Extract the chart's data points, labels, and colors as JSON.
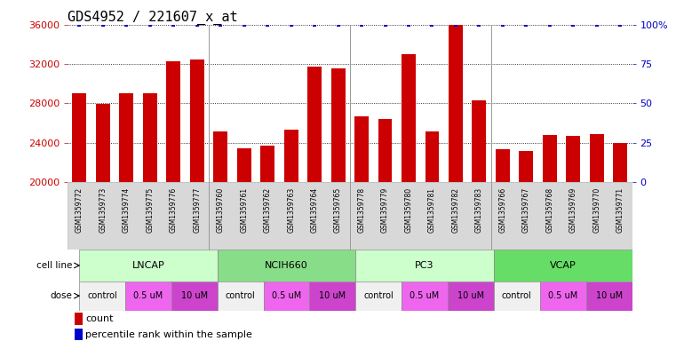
{
  "title": "GDS4952 / 221607_x_at",
  "samples": [
    "GSM1359772",
    "GSM1359773",
    "GSM1359774",
    "GSM1359775",
    "GSM1359776",
    "GSM1359777",
    "GSM1359760",
    "GSM1359761",
    "GSM1359762",
    "GSM1359763",
    "GSM1359764",
    "GSM1359765",
    "GSM1359778",
    "GSM1359779",
    "GSM1359780",
    "GSM1359781",
    "GSM1359782",
    "GSM1359783",
    "GSM1359766",
    "GSM1359767",
    "GSM1359768",
    "GSM1359769",
    "GSM1359770",
    "GSM1359771"
  ],
  "values": [
    29000,
    27900,
    29000,
    29000,
    32300,
    32400,
    25100,
    23400,
    23700,
    25300,
    31700,
    31500,
    26700,
    26400,
    33000,
    25100,
    36000,
    28300,
    23300,
    23200,
    24800,
    24700,
    24900,
    24000
  ],
  "bar_color": "#cc0000",
  "percentile_color": "#0000cc",
  "percentile_value": 36000,
  "ylim": [
    20000,
    36000
  ],
  "yticks": [
    20000,
    24000,
    28000,
    32000,
    36000
  ],
  "right_yticks": [
    0,
    25,
    50,
    75,
    100
  ],
  "right_ylim": [
    0,
    100
  ],
  "cell_lines": [
    {
      "label": "LNCAP",
      "start": 0,
      "end": 6,
      "color": "#ccffcc"
    },
    {
      "label": "NCIH660",
      "start": 6,
      "end": 12,
      "color": "#88dd88"
    },
    {
      "label": "PC3",
      "start": 12,
      "end": 18,
      "color": "#ccffcc"
    },
    {
      "label": "VCAP",
      "start": 18,
      "end": 24,
      "color": "#66dd66"
    }
  ],
  "dose_groups": [
    {
      "label": "control",
      "start": 0,
      "end": 2,
      "color": "#f0f0f0"
    },
    {
      "label": "0.5 uM",
      "start": 2,
      "end": 4,
      "color": "#ee66ee"
    },
    {
      "label": "10 uM",
      "start": 4,
      "end": 6,
      "color": "#cc44cc"
    },
    {
      "label": "control",
      "start": 6,
      "end": 8,
      "color": "#f0f0f0"
    },
    {
      "label": "0.5 uM",
      "start": 8,
      "end": 10,
      "color": "#ee66ee"
    },
    {
      "label": "10 uM",
      "start": 10,
      "end": 12,
      "color": "#cc44cc"
    },
    {
      "label": "control",
      "start": 12,
      "end": 14,
      "color": "#f0f0f0"
    },
    {
      "label": "0.5 uM",
      "start": 14,
      "end": 16,
      "color": "#ee66ee"
    },
    {
      "label": "10 uM",
      "start": 16,
      "end": 18,
      "color": "#cc44cc"
    },
    {
      "label": "control",
      "start": 18,
      "end": 20,
      "color": "#f0f0f0"
    },
    {
      "label": "0.5 uM",
      "start": 20,
      "end": 22,
      "color": "#ee66ee"
    },
    {
      "label": "10 uM",
      "start": 22,
      "end": 24,
      "color": "#cc44cc"
    }
  ],
  "group_separators": [
    6,
    12,
    18
  ],
  "grid_color": "#000000",
  "bg_color": "#ffffff",
  "ytick_color": "#cc0000",
  "right_tick_color": "#0000cc",
  "title_fontsize": 11,
  "bar_width": 0.6
}
